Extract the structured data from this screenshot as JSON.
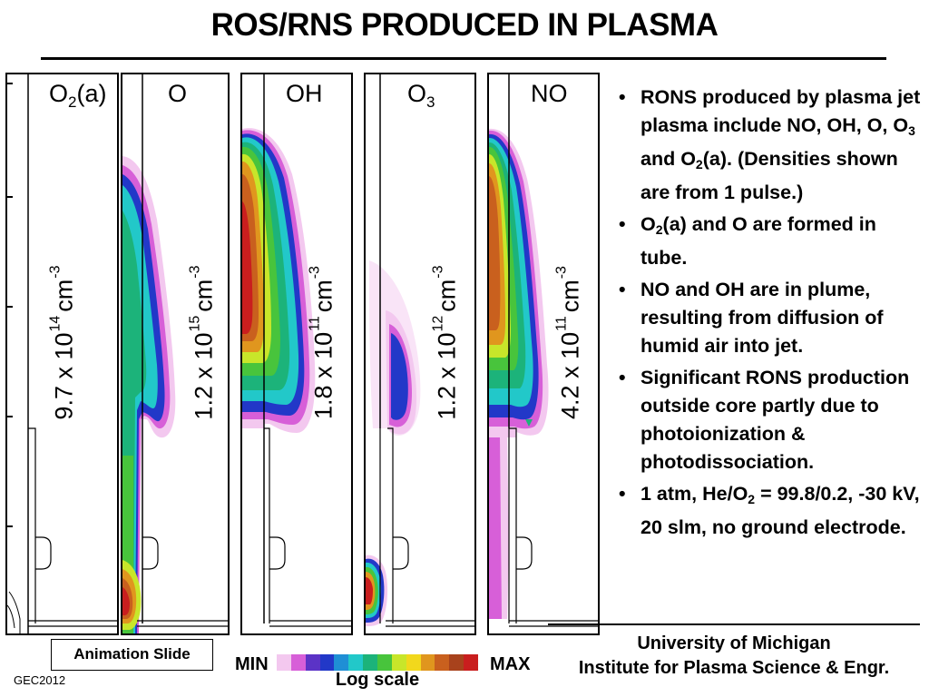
{
  "slide_title": "ROS/RNS PRODUCED IN PLASMA",
  "panels": [
    {
      "title_base": "O",
      "title_sub": "2",
      "title_tail": "(a)",
      "density_mantissa": "9.7 x 10",
      "density_exp": "14",
      "density_unit": "cm",
      "density_unit_exp": "-3"
    },
    {
      "title_base": "O",
      "title_sub": "",
      "title_tail": "",
      "density_mantissa": "1.2 x 10",
      "density_exp": "15",
      "density_unit": "cm",
      "density_unit_exp": "-3"
    },
    {
      "title_base": "OH",
      "title_sub": "",
      "title_tail": "",
      "density_mantissa": "1.8 x 10",
      "density_exp": "11",
      "density_unit": "cm",
      "density_unit_exp": "-3"
    },
    {
      "title_base": "O",
      "title_sub": "3",
      "title_tail": "",
      "density_mantissa": "1.2 x 10",
      "density_exp": "12",
      "density_unit": "cm",
      "density_unit_exp": "-3"
    },
    {
      "title_base": "NO",
      "title_sub": "",
      "title_tail": "",
      "density_mantissa": "4.2 x 10",
      "density_exp": "11",
      "density_unit": "cm",
      "density_unit_exp": "-3"
    }
  ],
  "bullets": {
    "b1": {
      "a": "RONS produced by plasma jet plasma include NO, OH, O, O",
      "b": "3",
      "c": " and O",
      "d": "2",
      "e": "(a). (Densities shown are from 1 pulse.)"
    },
    "b2": {
      "a": "O",
      "b": "2",
      "c": "(a) and O are formed in tube."
    },
    "b3": "NO and OH are in plume, resulting from diffusion of humid air into jet.",
    "b4": "Significant RONS production outside core partly due to photoionization & photodissociation.",
    "b5": {
      "a": "1 atm, He/O",
      "b": "2",
      "c": " = 99.8/0.2, -30 kV, 20 slm, no ground electrode."
    }
  },
  "colorbar": {
    "min_label": "MIN",
    "max_label": "MAX",
    "scale_label": "Log scale",
    "colors": [
      "#f3c8ef",
      "#d75fd8",
      "#5b33c6",
      "#2238c8",
      "#1f8fd5",
      "#22c8c9",
      "#1cb37a",
      "#48c43c",
      "#c8e62a",
      "#f2d81c",
      "#e0961e",
      "#c9601e",
      "#a8421c",
      "#c91e1e"
    ]
  },
  "footer": {
    "animation_label": "Animation Slide",
    "conference": "GEC2012",
    "university": "University of Michigan",
    "institute": "Institute for Plasma Science & Engr."
  }
}
